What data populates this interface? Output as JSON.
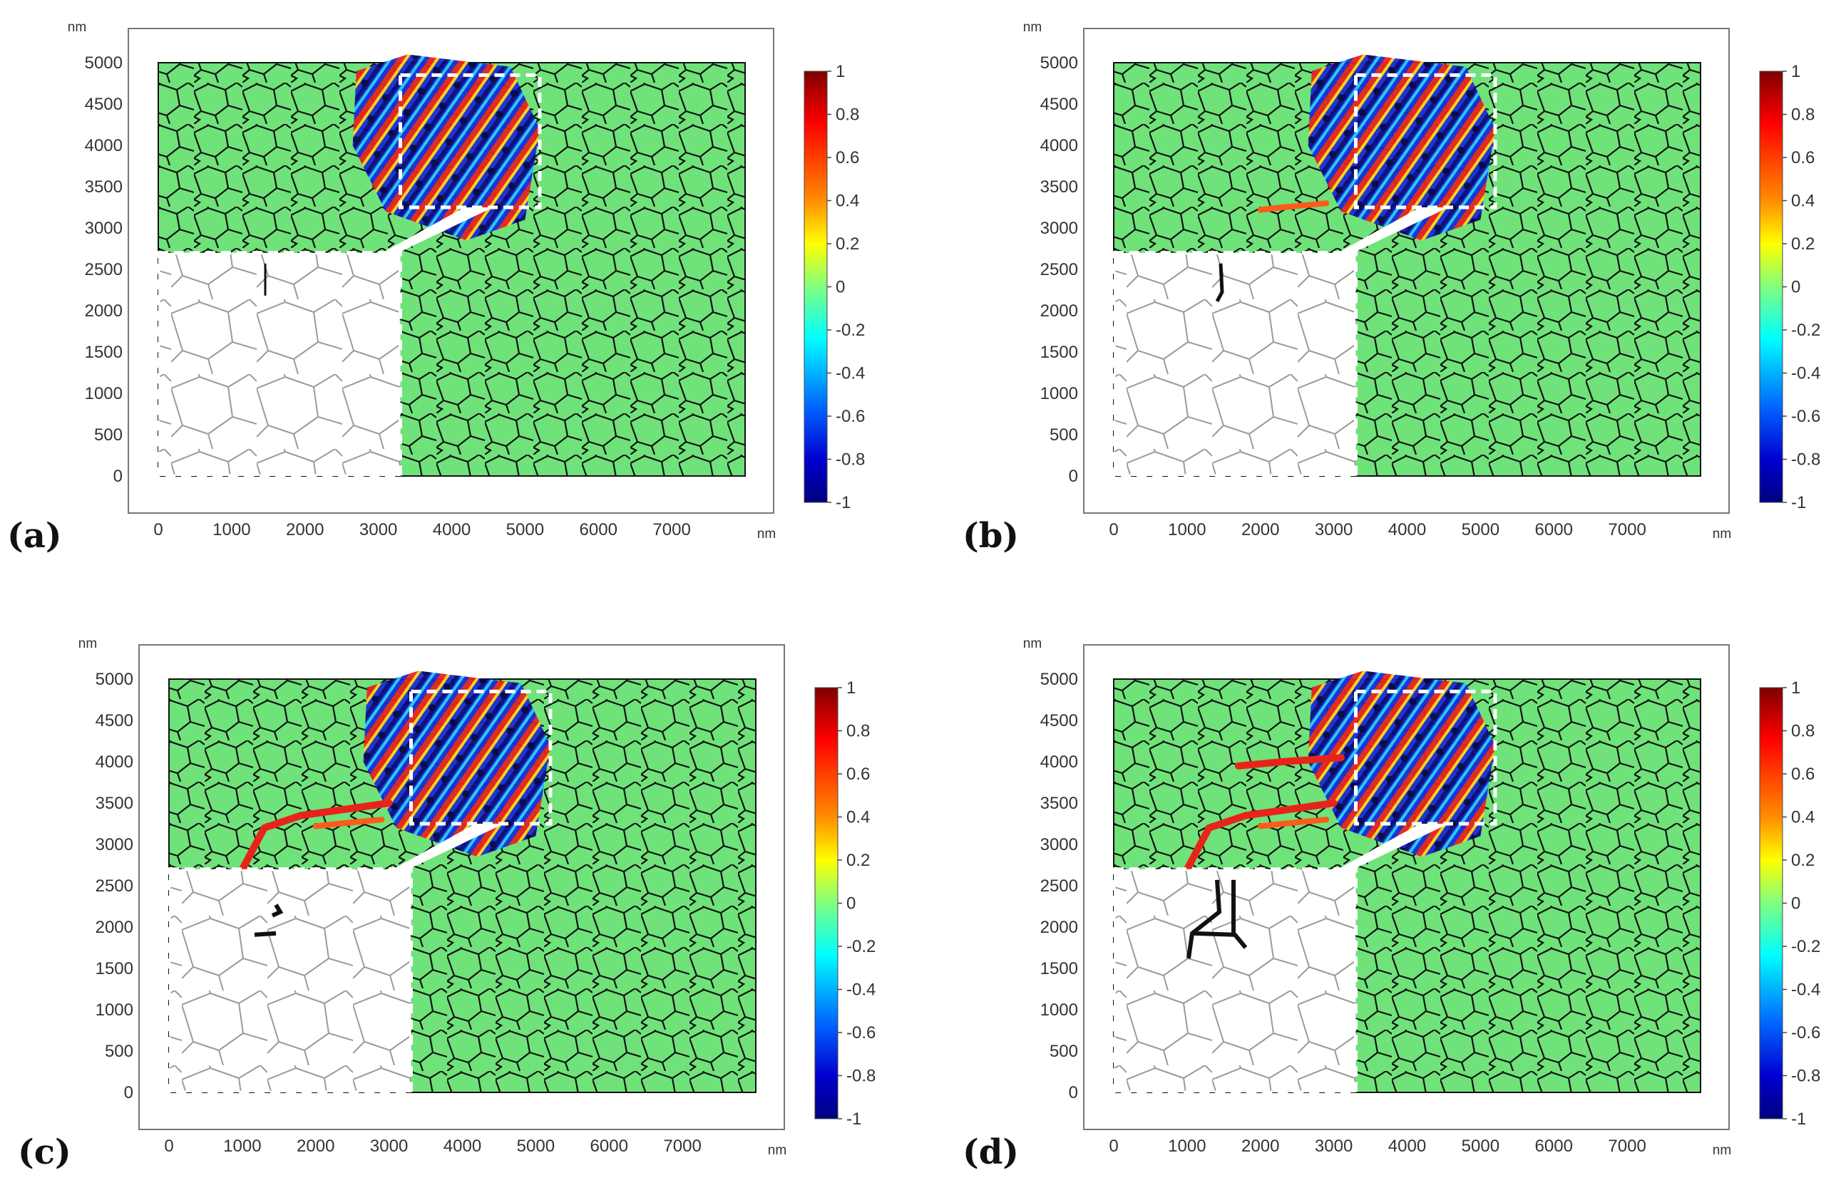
{
  "figure": {
    "unit_label": "nm",
    "x_ticks": [
      "0",
      "1000",
      "2000",
      "3000",
      "4000",
      "5000",
      "6000",
      "7000"
    ],
    "y_ticks": [
      "5000",
      "4500",
      "4000",
      "3500",
      "3000",
      "2500",
      "2000",
      "1500",
      "1000",
      "500",
      "0"
    ],
    "colorbar_ticks": [
      "1",
      "0.8",
      "0.6",
      "0.4",
      "0.2",
      "0",
      "-0.2",
      "-0.4",
      "-0.6",
      "-0.8",
      "-1"
    ],
    "colors": {
      "grain_fill": "#6fe27a",
      "grain_border": "#111111",
      "inset_border": "#ffffff",
      "frame": "#777777"
    },
    "panels": [
      {
        "label": "(a)",
        "stage": 0
      },
      {
        "label": "(b)",
        "stage": 1
      },
      {
        "label": "(c)",
        "stage": 2
      },
      {
        "label": "(d)",
        "stage": 3
      }
    ]
  }
}
